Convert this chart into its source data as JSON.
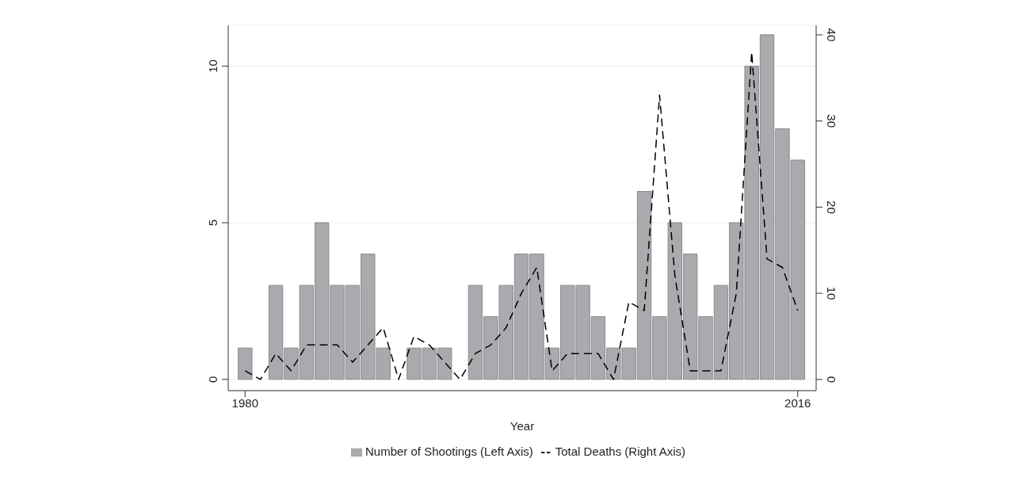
{
  "chart_data": {
    "type": "bar",
    "xlabel": "Year",
    "x": [
      1980,
      1981,
      1982,
      1983,
      1984,
      1985,
      1986,
      1987,
      1988,
      1989,
      1990,
      1991,
      1992,
      1993,
      1994,
      1995,
      1996,
      1997,
      1998,
      1999,
      2000,
      2001,
      2002,
      2003,
      2004,
      2005,
      2006,
      2007,
      2008,
      2009,
      2010,
      2011,
      2012,
      2013,
      2014,
      2015,
      2016
    ],
    "series": [
      {
        "name": "Number of Shootings (Left Axis)",
        "color": "#a9aaad",
        "values": [
          1,
          0,
          3,
          1,
          3,
          5,
          3,
          3,
          4,
          1,
          0,
          1,
          1,
          1,
          0,
          3,
          2,
          3,
          4,
          4,
          1,
          3,
          3,
          2,
          1,
          1,
          6,
          2,
          5,
          4,
          2,
          3,
          5,
          10,
          11,
          8,
          7
        ]
      },
      {
        "name": "Total Deaths (Right Axis)",
        "type": "line",
        "axis": "y2",
        "color": "#000000",
        "line_style": "dashed",
        "values": [
          1,
          0,
          3,
          1,
          4,
          4,
          4,
          2,
          4,
          6,
          0,
          5,
          4,
          2,
          0,
          3,
          4,
          6,
          10,
          13,
          1,
          3,
          3,
          3,
          0,
          9,
          8,
          33,
          12,
          1,
          1,
          1,
          10,
          38,
          14,
          13,
          8
        ]
      }
    ],
    "xlim": [
      1978.9,
      2017.2
    ],
    "xticks": [
      1980,
      2016
    ],
    "ylim": [
      -0.36,
      11.3
    ],
    "yticks": [
      0,
      5,
      10
    ],
    "y2lim": [
      -1.3,
      41.1
    ],
    "y2ticks": [
      0,
      10,
      20,
      30,
      40
    ],
    "grid": "y",
    "legend": "bottom",
    "marker": "none"
  }
}
